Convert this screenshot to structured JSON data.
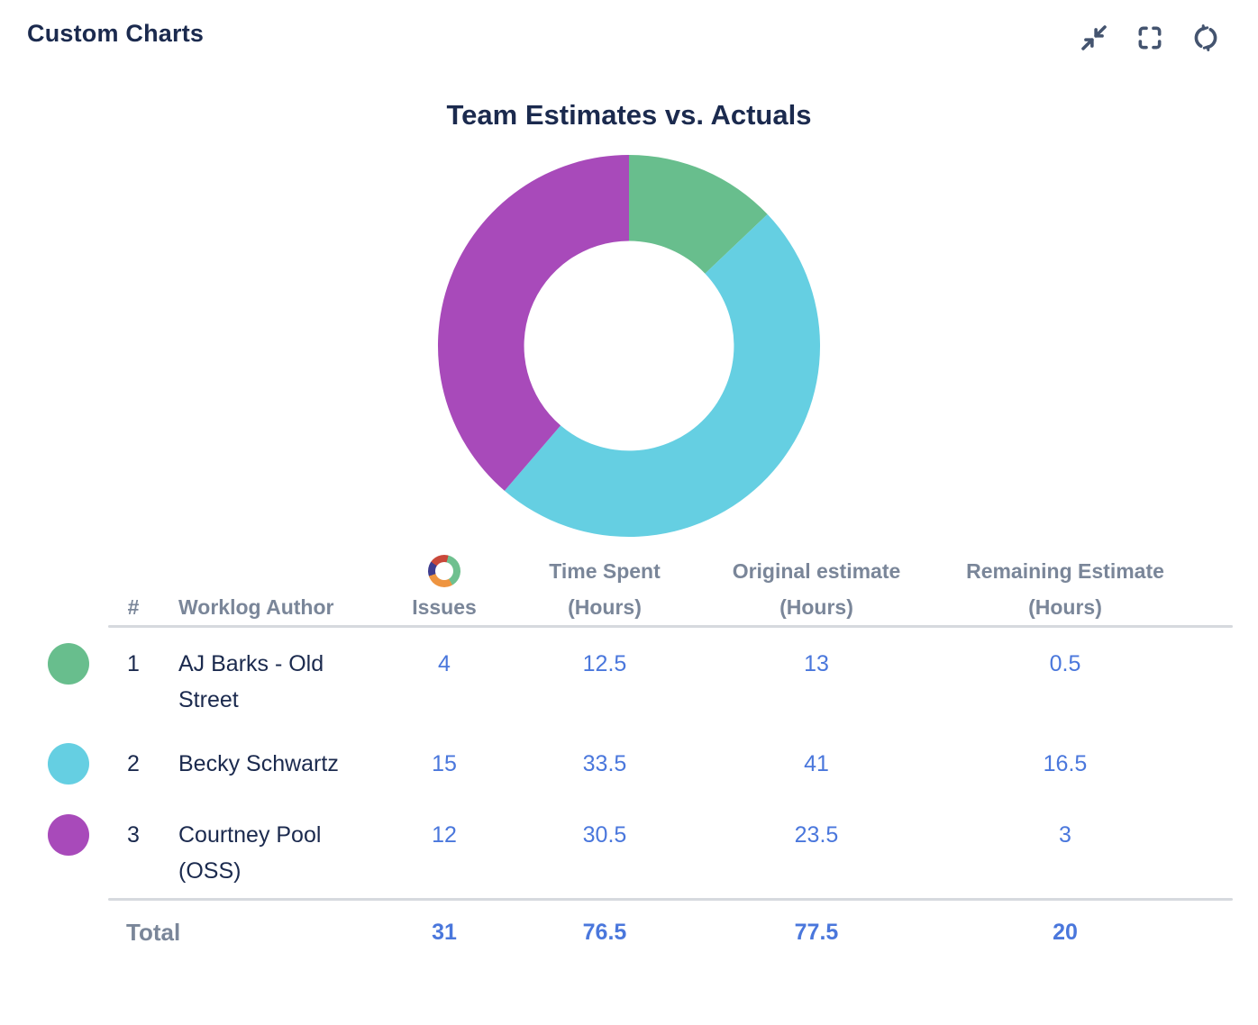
{
  "panel": {
    "title": "Custom Charts",
    "toolbar": [
      {
        "name": "collapse",
        "icon": "collapse-icon"
      },
      {
        "name": "fullscreen",
        "icon": "fullscreen-icon"
      },
      {
        "name": "refresh",
        "icon": "refresh-icon"
      }
    ]
  },
  "theme": {
    "heading_color": "#1B2A4E",
    "muted_color": "#7A8699",
    "value_color": "#4A77DC",
    "icon_color": "#44546F",
    "divider_color": "#D6D9DE"
  },
  "chart_data": {
    "type": "pie",
    "subtype": "donut",
    "title": "Team Estimates vs. Actuals",
    "categories": [
      "AJ Barks - Old Street",
      "Becky Schwartz",
      "Courtney Pool (OSS)"
    ],
    "series": [
      {
        "name": "Issues",
        "values": [
          4,
          15,
          12
        ]
      },
      {
        "name": "Time Spent (Hours)",
        "values": [
          12.5,
          33.5,
          30.5
        ]
      },
      {
        "name": "Original estimate (Hours)",
        "values": [
          13,
          41,
          23.5
        ]
      },
      {
        "name": "Remaining Estimate (Hours)",
        "values": [
          0.5,
          16.5,
          3
        ]
      }
    ],
    "donut_series": "Issues",
    "totals": {
      "Issues": 31,
      "Time Spent (Hours)": 76.5,
      "Original estimate (Hours)": 77.5,
      "Remaining Estimate (Hours)": 20
    },
    "colors": [
      "#68BE8D",
      "#65CFE2",
      "#A84ABA"
    ],
    "start_angle": 0,
    "direction": "clockwise",
    "inner_radius_ratio": 0.55,
    "legend_position": "table-below"
  },
  "table": {
    "headers": {
      "num": "#",
      "author": "Worklog Author",
      "issues": "Issues",
      "issues_icon": "mini-donut-icon",
      "time_line1": "Time Spent",
      "time_line2": "(Hours)",
      "orig_line1": "Original estimate",
      "orig_line2": "(Hours)",
      "rem_line1": "Remaining Estimate",
      "rem_line2": "(Hours)"
    },
    "rows": [
      {
        "num": "1",
        "author": "AJ Barks - Old Street",
        "issues": "4",
        "time": "12.5",
        "orig": "13",
        "rem": "0.5",
        "color": "#68BE8D"
      },
      {
        "num": "2",
        "author": "Becky Schwartz",
        "issues": "15",
        "time": "33.5",
        "orig": "41",
        "rem": "16.5",
        "color": "#65CFE2"
      },
      {
        "num": "3",
        "author": "Courtney Pool (OSS)",
        "issues": "12",
        "time": "30.5",
        "orig": "23.5",
        "rem": "3",
        "color": "#A84ABA"
      }
    ],
    "total": {
      "label": "Total",
      "issues": "31",
      "time": "76.5",
      "orig": "77.5",
      "rem": "20"
    }
  }
}
